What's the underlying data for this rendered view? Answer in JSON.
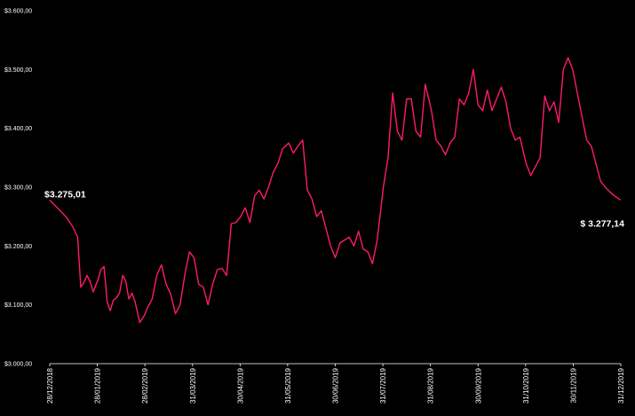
{
  "chart_data": {
    "type": "line",
    "title": "",
    "xlabel": "",
    "ylabel": "",
    "ylim": [
      3000,
      3600
    ],
    "grid": false,
    "legend": "none",
    "y_ticks": [
      "$3.600,00",
      "$3.500,00",
      "$3.400,00",
      "$3.300,00",
      "$3.200,00",
      "$3.100,00",
      "$3.000,00"
    ],
    "y_tick_values": [
      3600,
      3500,
      3400,
      3300,
      3200,
      3100,
      3000
    ],
    "x_ticks": [
      "28/12/2018",
      "28/01/2019",
      "28/02/2019",
      "31/03/2019",
      "30/04/2019",
      "31/05/2019",
      "30/06/2019",
      "31/07/2019",
      "31/08/2019",
      "30/09/2019",
      "31/10/2019",
      "30/11/2019",
      "31/12/2019"
    ],
    "line_color": "#ff1a6e",
    "data_labels": {
      "start": "$3.275,01",
      "end": "$ 3.277,14"
    },
    "x": [
      "2018-12-28",
      "2019-01-03",
      "2019-01-08",
      "2019-01-12",
      "2019-01-15",
      "2019-01-17",
      "2019-01-19",
      "2019-01-21",
      "2019-01-23",
      "2019-01-25",
      "2019-01-28",
      "2019-01-30",
      "2019-02-01",
      "2019-02-03",
      "2019-02-05",
      "2019-02-07",
      "2019-02-09",
      "2019-02-11",
      "2019-02-13",
      "2019-02-15",
      "2019-02-17",
      "2019-02-19",
      "2019-02-21",
      "2019-02-24",
      "2019-02-27",
      "2019-03-01",
      "2019-03-04",
      "2019-03-07",
      "2019-03-10",
      "2019-03-13",
      "2019-03-16",
      "2019-03-19",
      "2019-03-22",
      "2019-03-25",
      "2019-03-28",
      "2019-03-31",
      "2019-04-03",
      "2019-04-06",
      "2019-04-09",
      "2019-04-12",
      "2019-04-15",
      "2019-04-18",
      "2019-04-21",
      "2019-04-24",
      "2019-04-27",
      "2019-04-30",
      "2019-05-03",
      "2019-05-06",
      "2019-05-09",
      "2019-05-12",
      "2019-05-15",
      "2019-05-18",
      "2019-05-21",
      "2019-05-24",
      "2019-05-27",
      "2019-05-31",
      "2019-06-03",
      "2019-06-06",
      "2019-06-09",
      "2019-06-12",
      "2019-06-15",
      "2019-06-18",
      "2019-06-21",
      "2019-06-24",
      "2019-06-27",
      "2019-06-30",
      "2019-07-03",
      "2019-07-06",
      "2019-07-09",
      "2019-07-12",
      "2019-07-15",
      "2019-07-18",
      "2019-07-21",
      "2019-07-24",
      "2019-07-27",
      "2019-07-31",
      "2019-08-03",
      "2019-08-06",
      "2019-08-09",
      "2019-08-12",
      "2019-08-15",
      "2019-08-18",
      "2019-08-21",
      "2019-08-24",
      "2019-08-27",
      "2019-08-31",
      "2019-09-03",
      "2019-09-06",
      "2019-09-09",
      "2019-09-12",
      "2019-09-15",
      "2019-09-18",
      "2019-09-21",
      "2019-09-24",
      "2019-09-27",
      "2019-09-30",
      "2019-10-03",
      "2019-10-06",
      "2019-10-09",
      "2019-10-12",
      "2019-10-15",
      "2019-10-18",
      "2019-10-21",
      "2019-10-24",
      "2019-10-27",
      "2019-10-31",
      "2019-11-03",
      "2019-11-06",
      "2019-11-09",
      "2019-11-12",
      "2019-11-15",
      "2019-11-18",
      "2019-11-21",
      "2019-11-24",
      "2019-11-27",
      "2019-11-30",
      "2019-12-03",
      "2019-12-06",
      "2019-12-09",
      "2019-12-12",
      "2019-12-15",
      "2019-12-18",
      "2019-12-21",
      "2019-12-24",
      "2019-12-27",
      "2019-12-31"
    ],
    "values": [
      3278,
      3262,
      3248,
      3232,
      3215,
      3130,
      3138,
      3150,
      3140,
      3122,
      3142,
      3160,
      3165,
      3105,
      3090,
      3108,
      3112,
      3120,
      3150,
      3140,
      3110,
      3120,
      3105,
      3070,
      3082,
      3095,
      3110,
      3150,
      3168,
      3135,
      3118,
      3085,
      3100,
      3150,
      3190,
      3180,
      3135,
      3130,
      3100,
      3135,
      3160,
      3162,
      3150,
      3238,
      3240,
      3250,
      3265,
      3240,
      3285,
      3295,
      3280,
      3300,
      3325,
      3340,
      3365,
      3375,
      3358,
      3370,
      3380,
      3295,
      3280,
      3250,
      3260,
      3230,
      3200,
      3180,
      3205,
      3210,
      3215,
      3200,
      3225,
      3195,
      3190,
      3170,
      3210,
      3300,
      3350,
      3460,
      3395,
      3380,
      3450,
      3450,
      3395,
      3385,
      3475,
      3430,
      3380,
      3370,
      3355,
      3375,
      3385,
      3450,
      3440,
      3460,
      3500,
      3440,
      3430,
      3465,
      3430,
      3450,
      3470,
      3445,
      3400,
      3380,
      3385,
      3340,
      3320,
      3335,
      3350,
      3455,
      3430,
      3445,
      3410,
      3500,
      3520,
      3500,
      3460,
      3420,
      3380,
      3370,
      3340,
      3310,
      3300,
      3292,
      3285,
      3278
    ]
  }
}
